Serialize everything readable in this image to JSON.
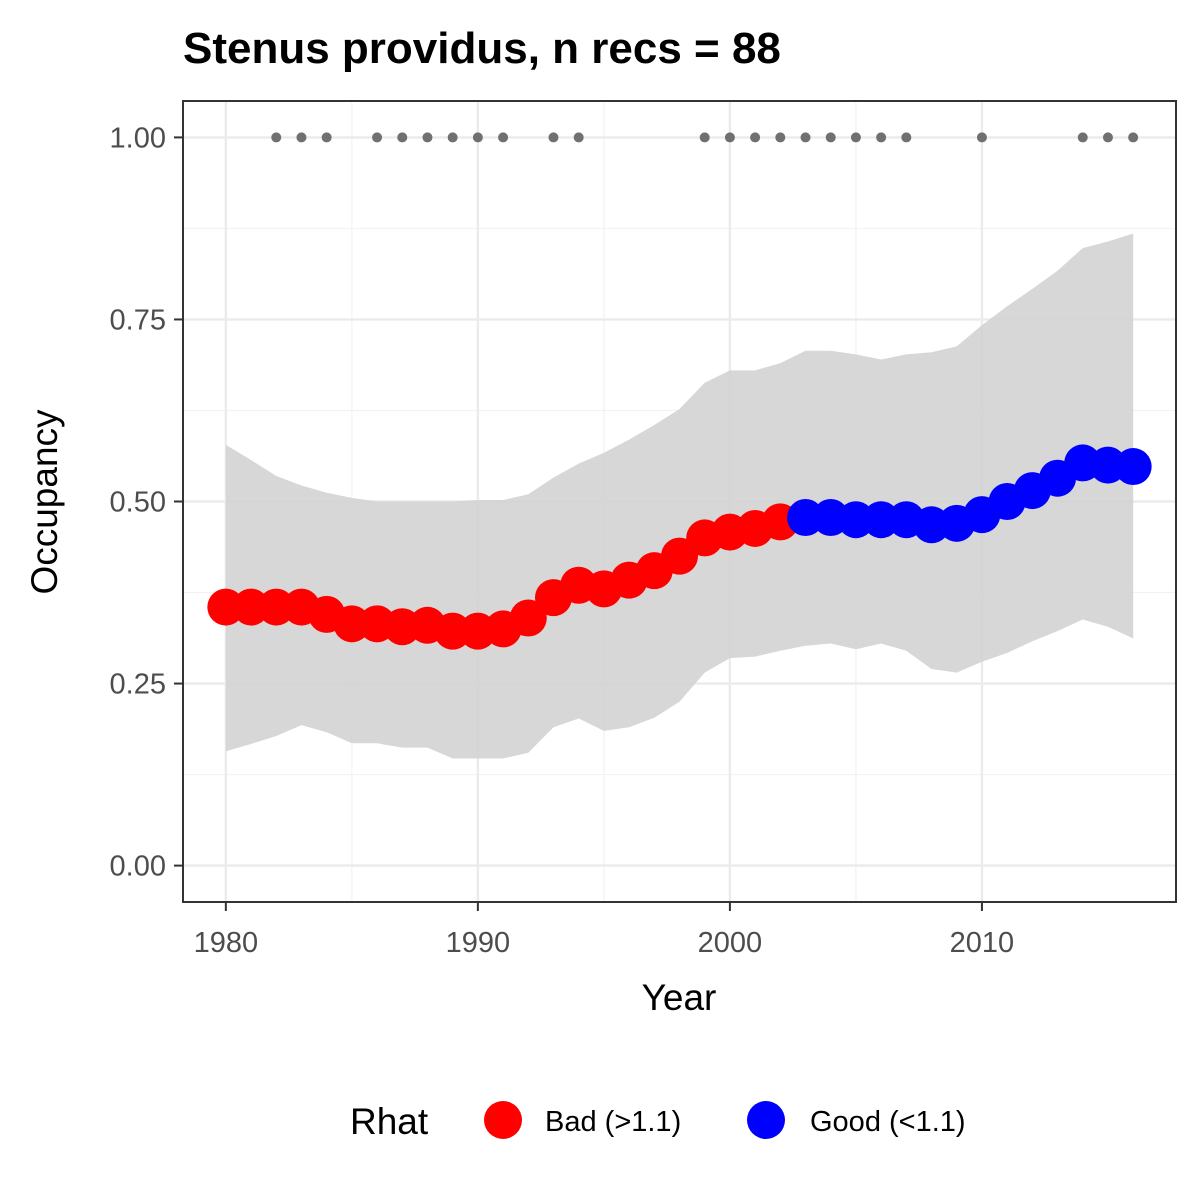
{
  "chart_data": {
    "type": "line",
    "title": "Stenus providus, n recs = 88",
    "xlabel": "Year",
    "ylabel": "Occupancy",
    "xlim": [
      1978.3,
      2017.7
    ],
    "ylim": [
      -0.05,
      1.05
    ],
    "x_ticks": [
      "1980",
      "1990",
      "2000",
      "2010"
    ],
    "x_tick_values": [
      1980,
      1990,
      2000,
      2010
    ],
    "y_ticks": [
      "0.00",
      "0.25",
      "0.50",
      "0.75",
      "1.00"
    ],
    "y_tick_values": [
      0.0,
      0.25,
      0.5,
      0.75,
      1.0
    ],
    "grid": true,
    "legend_position": "bottom",
    "legend": {
      "title": "Rhat",
      "entries": [
        {
          "label": "Bad (>1.1)",
          "color": "#ff0000"
        },
        {
          "label": "Good (<1.1)",
          "color": "#0000ff"
        }
      ]
    },
    "colors": {
      "bad": "#ff0000",
      "good": "#0000ff",
      "ribbon": "#d3d3d3",
      "records": "#707070"
    },
    "x": [
      1980,
      1981,
      1982,
      1983,
      1984,
      1985,
      1986,
      1987,
      1988,
      1989,
      1990,
      1991,
      1992,
      1993,
      1994,
      1995,
      1996,
      1997,
      1998,
      1999,
      2000,
      2001,
      2002,
      2003,
      2004,
      2005,
      2006,
      2007,
      2008,
      2009,
      2010,
      2011,
      2012,
      2013,
      2014,
      2015,
      2016
    ],
    "series": [
      {
        "name": "Occupancy",
        "values": [
          0.355,
          0.355,
          0.355,
          0.355,
          0.345,
          0.332,
          0.332,
          0.328,
          0.33,
          0.322,
          0.322,
          0.325,
          0.34,
          0.368,
          0.385,
          0.38,
          0.392,
          0.405,
          0.425,
          0.45,
          0.458,
          0.463,
          0.472,
          0.478,
          0.478,
          0.475,
          0.475,
          0.475,
          0.468,
          0.47,
          0.482,
          0.5,
          0.515,
          0.532,
          0.553,
          0.55,
          0.548
        ],
        "rhat": [
          "bad",
          "bad",
          "bad",
          "bad",
          "bad",
          "bad",
          "bad",
          "bad",
          "bad",
          "bad",
          "bad",
          "bad",
          "bad",
          "bad",
          "bad",
          "bad",
          "bad",
          "bad",
          "bad",
          "bad",
          "bad",
          "bad",
          "bad",
          "good",
          "good",
          "good",
          "good",
          "good",
          "good",
          "good",
          "good",
          "good",
          "good",
          "good",
          "good",
          "good",
          "good"
        ]
      }
    ],
    "interval_lower": [
      0.157,
      0.167,
      0.178,
      0.193,
      0.183,
      0.168,
      0.168,
      0.162,
      0.162,
      0.147,
      0.147,
      0.147,
      0.155,
      0.19,
      0.202,
      0.185,
      0.19,
      0.203,
      0.225,
      0.265,
      0.285,
      0.287,
      0.295,
      0.302,
      0.305,
      0.297,
      0.305,
      0.295,
      0.27,
      0.265,
      0.28,
      0.292,
      0.308,
      0.322,
      0.338,
      0.328,
      0.312
    ],
    "interval_upper": [
      0.578,
      0.557,
      0.535,
      0.522,
      0.512,
      0.505,
      0.5,
      0.5,
      0.5,
      0.5,
      0.502,
      0.502,
      0.51,
      0.533,
      0.552,
      0.567,
      0.585,
      0.605,
      0.627,
      0.663,
      0.68,
      0.68,
      0.69,
      0.707,
      0.707,
      0.702,
      0.695,
      0.702,
      0.705,
      0.713,
      0.742,
      0.768,
      0.792,
      0.817,
      0.848,
      0.857,
      0.868
    ],
    "records": {
      "y": 1.0,
      "years": [
        1982,
        1983,
        1984,
        1986,
        1987,
        1988,
        1989,
        1990,
        1991,
        1993,
        1994,
        1999,
        2000,
        2001,
        2002,
        2003,
        2004,
        2005,
        2006,
        2007,
        2010,
        2014,
        2015,
        2016
      ]
    }
  }
}
